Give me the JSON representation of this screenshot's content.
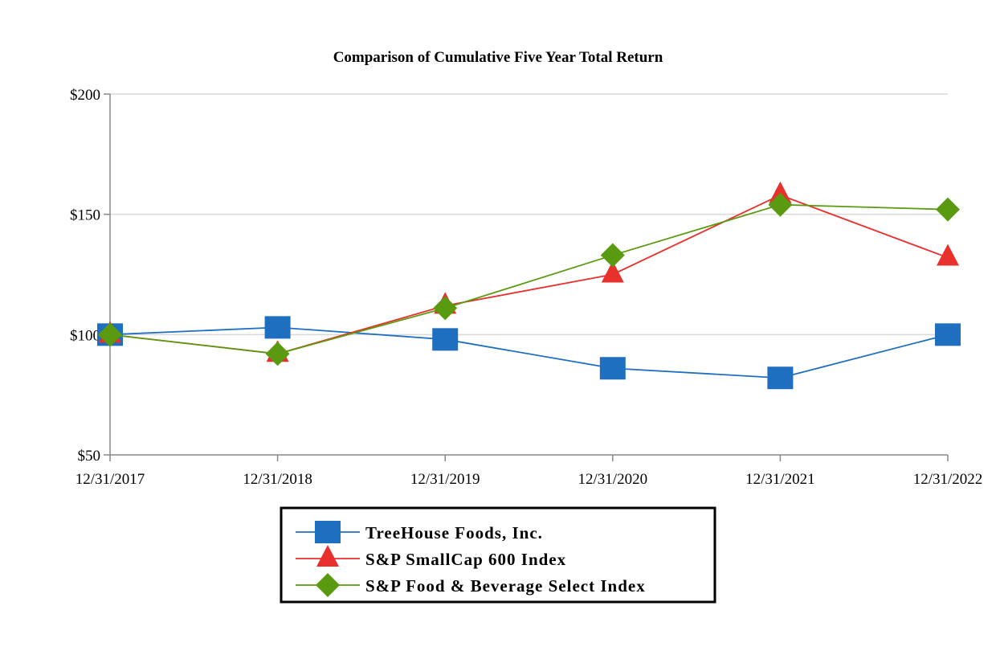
{
  "chart_data": {
    "type": "line",
    "title": "Comparison of Cumulative Five Year Total Return",
    "xlabel": "",
    "ylabel": "",
    "x": [
      "12/31/2017",
      "12/31/2018",
      "12/31/2019",
      "12/31/2020",
      "12/31/2021",
      "12/31/2022"
    ],
    "ylim": [
      50,
      200
    ],
    "yticks": [
      50,
      100,
      150,
      200
    ],
    "ytick_labels": [
      "$50",
      "$100",
      "$150",
      "$200"
    ],
    "grid": true,
    "legend_position": "bottom-center",
    "series": [
      {
        "name": "TreeHouse Foods, Inc.",
        "color": "#1f6fc0",
        "marker": "square",
        "values": [
          100,
          103,
          98,
          86,
          82,
          100
        ]
      },
      {
        "name": "S&P SmallCap 600 Index",
        "color": "#e8302c",
        "marker": "triangle",
        "values": [
          100,
          92,
          112,
          125,
          158,
          132
        ]
      },
      {
        "name": "S&P Food & Beverage Select Index",
        "color": "#5a9a10",
        "marker": "diamond",
        "values": [
          100,
          92,
          111,
          133,
          154,
          152
        ]
      }
    ]
  }
}
